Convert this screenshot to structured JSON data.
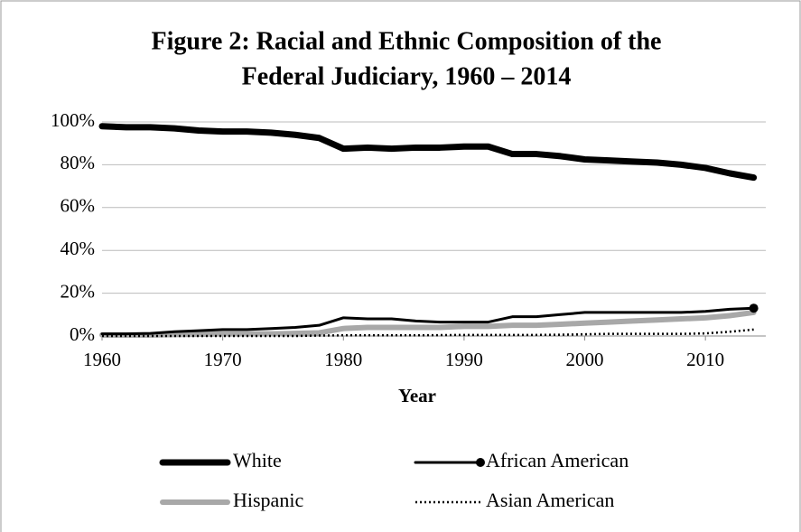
{
  "chart_data": {
    "type": "line",
    "title": [
      "Figure 2: Racial and Ethnic Composition of the",
      "Federal Judiciary, 1960 – 2014"
    ],
    "x_label": "Year",
    "x": [
      1960,
      1962,
      1964,
      1966,
      1968,
      1970,
      1972,
      1974,
      1976,
      1978,
      1980,
      1982,
      1984,
      1986,
      1988,
      1990,
      1992,
      1994,
      1996,
      1998,
      2000,
      2002,
      2004,
      2006,
      2008,
      2010,
      2012,
      2014
    ],
    "xlim": [
      1960,
      2015
    ],
    "xticks": [
      1960,
      1970,
      1980,
      1990,
      2000,
      2010
    ],
    "ylim": [
      0,
      100
    ],
    "yticks": [
      {
        "value": 0,
        "label": "0%"
      },
      {
        "value": 20,
        "label": "20%"
      },
      {
        "value": 40,
        "label": "40%"
      },
      {
        "value": 60,
        "label": "60%"
      },
      {
        "value": 80,
        "label": "80%"
      },
      {
        "value": 100,
        "label": "100%"
      }
    ],
    "grid": true,
    "legend": "bottom",
    "series": [
      {
        "name": "White",
        "color": "#000000",
        "values": [
          98,
          97.5,
          97.5,
          97,
          96,
          95.5,
          95.5,
          95,
          94,
          92.5,
          87.5,
          88,
          87.5,
          88,
          88,
          88.5,
          88.5,
          85,
          85,
          84,
          82.5,
          82,
          81.5,
          81,
          80,
          78.5,
          76,
          74
        ]
      },
      {
        "name": "African American",
        "color": "#000000",
        "marker": "circle",
        "values": [
          1,
          1,
          1.2,
          2,
          2.5,
          3,
          3,
          3.5,
          4,
          5,
          8.5,
          8,
          8,
          7,
          6.5,
          6.5,
          6.5,
          9,
          9,
          10,
          11,
          11,
          11,
          11,
          11,
          11.5,
          12.5,
          13
        ]
      },
      {
        "name": "Hispanic",
        "color": "#a8a8a8",
        "values": [
          0.5,
          0.5,
          0.5,
          0.7,
          0.8,
          1,
          1,
          1,
          1.2,
          1.5,
          3.5,
          4,
          4,
          4,
          4,
          4.5,
          4.5,
          5,
          5,
          5.5,
          6,
          6.5,
          7,
          7.5,
          8,
          8.5,
          9.5,
          11
        ]
      },
      {
        "name": "Asian American",
        "color": "#000000",
        "style": "dotted",
        "values": [
          0,
          0,
          0,
          0,
          0,
          0,
          0,
          0,
          0,
          0.2,
          0.3,
          0.3,
          0.3,
          0.3,
          0.4,
          0.5,
          0.5,
          0.5,
          0.5,
          0.6,
          0.8,
          1,
          1,
          1,
          1,
          1.2,
          2,
          3
        ]
      }
    ]
  }
}
